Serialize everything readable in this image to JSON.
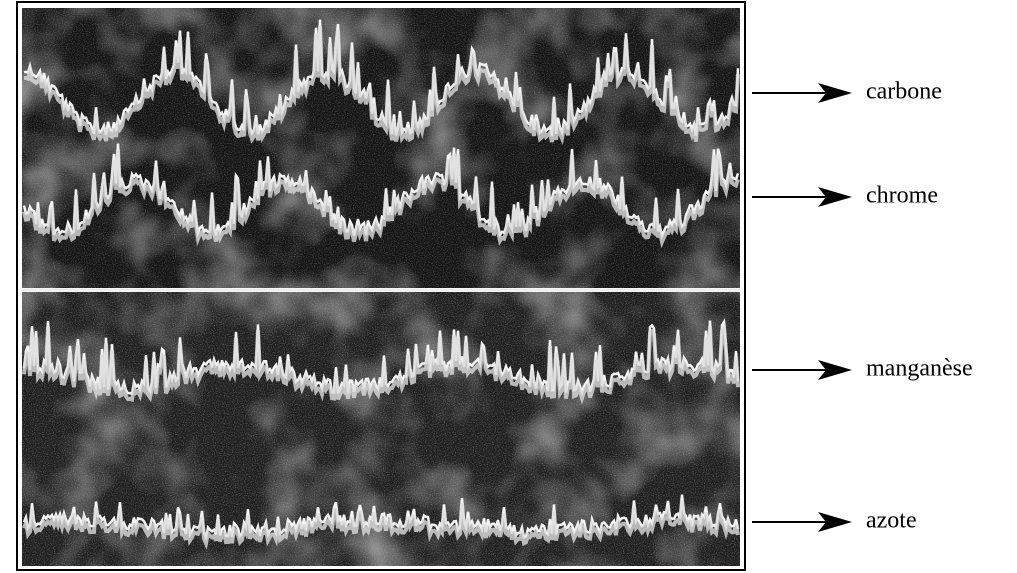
{
  "figure": {
    "labels": [
      "carbone",
      "chrome",
      "manganèse",
      "azote"
    ]
  }
}
